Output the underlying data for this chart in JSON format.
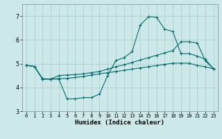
{
  "xlabel": "Humidex (Indice chaleur)",
  "xlim": [
    -0.5,
    23.5
  ],
  "ylim": [
    3.0,
    7.5
  ],
  "yticks": [
    3,
    4,
    5,
    6,
    7
  ],
  "xticks": [
    0,
    1,
    2,
    3,
    4,
    5,
    6,
    7,
    8,
    9,
    10,
    11,
    12,
    13,
    14,
    15,
    16,
    17,
    18,
    19,
    20,
    21,
    22,
    23
  ],
  "background_color": "#cce8e8",
  "grid_color": "#aacccc",
  "line_color": "#006e6e",
  "line1_x": [
    0,
    1,
    2,
    3,
    4,
    5,
    6,
    7,
    8,
    9,
    10,
    11,
    12,
    13,
    14,
    15,
    16,
    17,
    18,
    19,
    20,
    21,
    22,
    23
  ],
  "line1_y": [
    4.93,
    4.88,
    4.37,
    4.35,
    4.35,
    3.52,
    3.52,
    3.57,
    3.57,
    3.72,
    4.5,
    5.13,
    5.25,
    5.5,
    6.62,
    6.97,
    6.95,
    6.45,
    6.35,
    5.42,
    5.42,
    5.32,
    5.18,
    4.78
  ],
  "line2_x": [
    0,
    1,
    2,
    3,
    4,
    5,
    6,
    7,
    8,
    9,
    10,
    11,
    12,
    13,
    14,
    15,
    16,
    17,
    18,
    19,
    20,
    21,
    22,
    23
  ],
  "line2_y": [
    4.93,
    4.88,
    4.35,
    4.35,
    4.5,
    4.52,
    4.54,
    4.57,
    4.62,
    4.67,
    4.77,
    4.87,
    4.95,
    5.05,
    5.15,
    5.25,
    5.35,
    5.45,
    5.55,
    5.92,
    5.92,
    5.87,
    5.12,
    4.78
  ],
  "line3_x": [
    0,
    1,
    2,
    3,
    4,
    5,
    6,
    7,
    8,
    9,
    10,
    11,
    12,
    13,
    14,
    15,
    16,
    17,
    18,
    19,
    20,
    21,
    22,
    23
  ],
  "line3_y": [
    4.93,
    4.88,
    4.35,
    4.35,
    4.37,
    4.38,
    4.42,
    4.46,
    4.52,
    4.57,
    4.62,
    4.67,
    4.72,
    4.77,
    4.82,
    4.87,
    4.92,
    4.97,
    5.02,
    5.02,
    5.02,
    4.92,
    4.87,
    4.78
  ]
}
